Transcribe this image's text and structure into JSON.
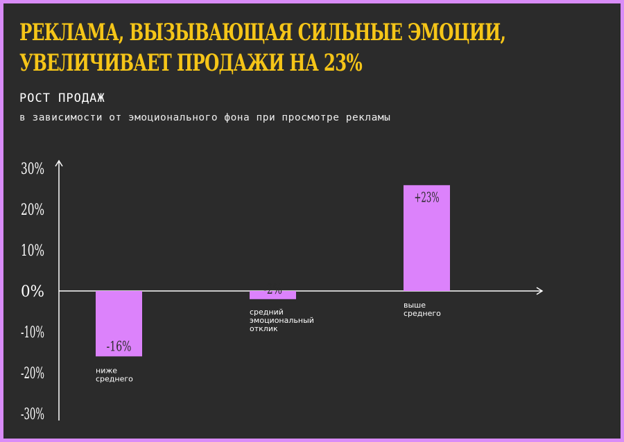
{
  "header": {
    "title_line1": "РЕКЛАМА, ВЫЗЫВАЮЩАЯ СИЛЬНЫЕ ЭМОЦИИ,",
    "title_line2": "УВЕЛИЧИВАЕТ ПРОДАЖИ НА 23%",
    "subtitle": "РОСТ ПРОДАЖ",
    "description": "в зависимости от эмоционального фона при просмотре рекламы"
  },
  "colors": {
    "background": "#2b2b2b",
    "border": "#d98cf7",
    "bar": "#dc82fb",
    "title": "#f5c518"
  },
  "chart_data": {
    "type": "bar",
    "title": "РОСТ ПРОДАЖ",
    "categories": [
      [
        "ниже",
        "среднего"
      ],
      [
        "средний",
        "эмоциональный",
        "отклик"
      ],
      [
        "выше",
        "среднего"
      ]
    ],
    "values": [
      -16,
      -2,
      23
    ],
    "value_labels": [
      "-16%",
      "-2%",
      "+23%"
    ],
    "ylim": [
      -30,
      30
    ],
    "yticks": [
      "30%",
      "20%",
      "10%",
      "0%",
      "-10%",
      "-20%",
      "-30%"
    ],
    "ytick_values": [
      30,
      20,
      10,
      0,
      -10,
      -20,
      -30
    ],
    "grid": false
  }
}
